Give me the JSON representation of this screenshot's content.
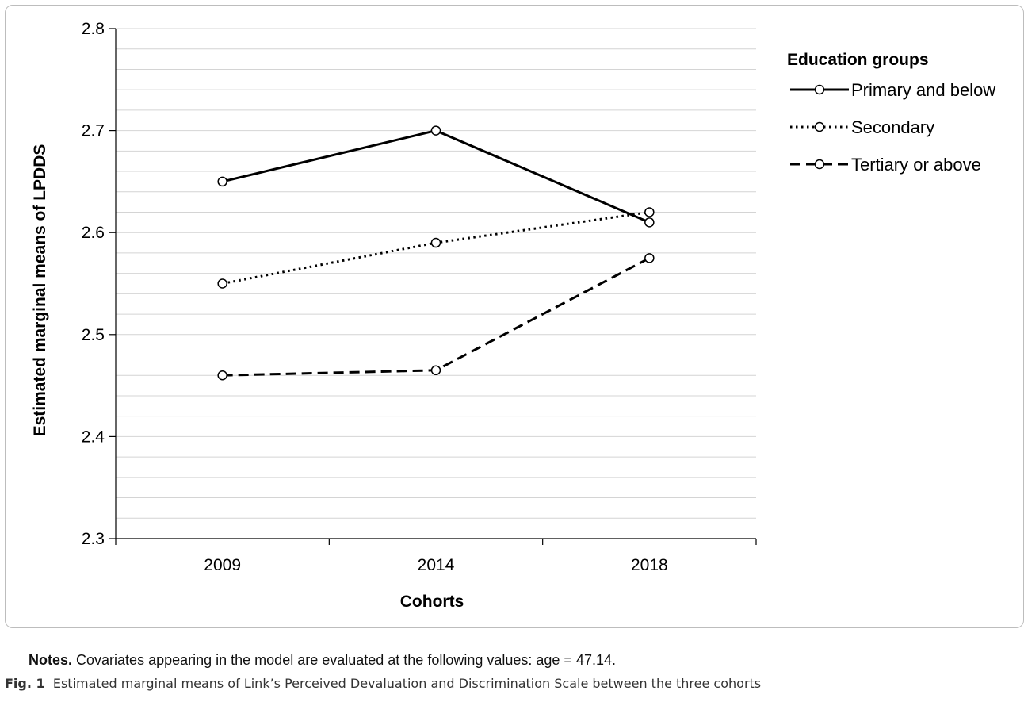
{
  "chart_data": {
    "type": "line",
    "xlabel": "Cohorts",
    "ylabel": "Estimated marginal means of LPDDS",
    "categories": [
      "2009",
      "2014",
      "2018"
    ],
    "ylim": [
      2.3,
      2.8
    ],
    "yticks": [
      "2.3",
      "2.4",
      "2.5",
      "2.6",
      "2.7",
      "2.8"
    ],
    "grid": "horizontal minor gridlines",
    "legend_title": "Education groups",
    "legend_position": "right",
    "series": [
      {
        "name": "Primary and below",
        "style": "solid",
        "values": [
          2.65,
          2.7,
          2.61
        ]
      },
      {
        "name": "Secondary",
        "style": "dotted",
        "values": [
          2.55,
          2.59,
          2.62
        ]
      },
      {
        "name": "Tertiary or above",
        "style": "dashed",
        "values": [
          2.46,
          2.465,
          2.575
        ]
      }
    ]
  },
  "notes": {
    "label": "Notes.",
    "text": "Covariates appearing in the model are evaluated at the following values: age = 47.14."
  },
  "caption": {
    "label": "Fig. 1",
    "text": "Estimated marginal means of Link’s Perceived Devaluation and Discrimination Scale between the three cohorts"
  }
}
